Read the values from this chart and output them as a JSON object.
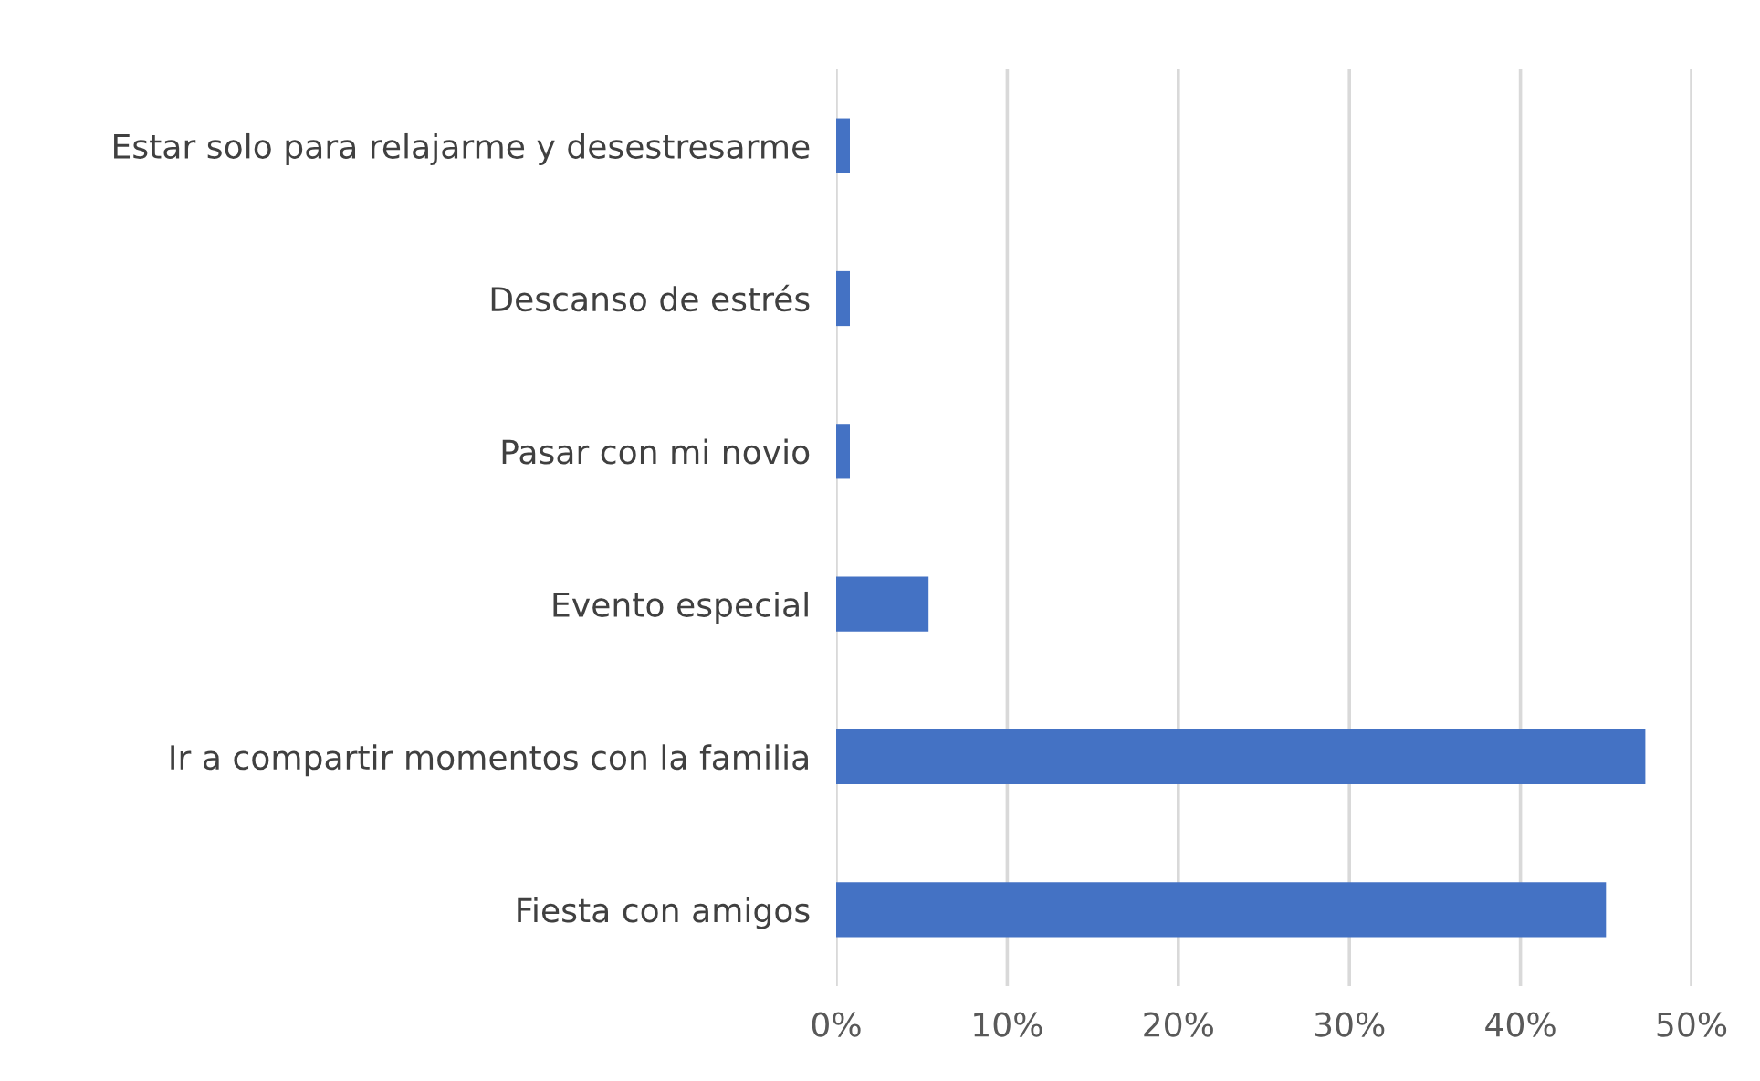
{
  "chart_data": {
    "type": "bar",
    "orientation": "horizontal",
    "categories": [
      "Estar solo para relajarme y desestresarme",
      "Descanso de estrés",
      "Pasar con mi novio",
      "Evento especial",
      "Ir a compartir momentos con la familia",
      "Fiesta con amigos"
    ],
    "values": [
      0.8,
      0.8,
      0.8,
      5.4,
      47.3,
      45.0
    ],
    "color": "#4472c4",
    "xlim": [
      0,
      50
    ],
    "xticks": [
      {
        "value": 0,
        "label": "0%"
      },
      {
        "value": 10,
        "label": "10%"
      },
      {
        "value": 20,
        "label": "20%"
      },
      {
        "value": 30,
        "label": "30%"
      },
      {
        "value": 40,
        "label": "40%"
      },
      {
        "value": 50,
        "label": "50%"
      }
    ],
    "grid": "x"
  }
}
